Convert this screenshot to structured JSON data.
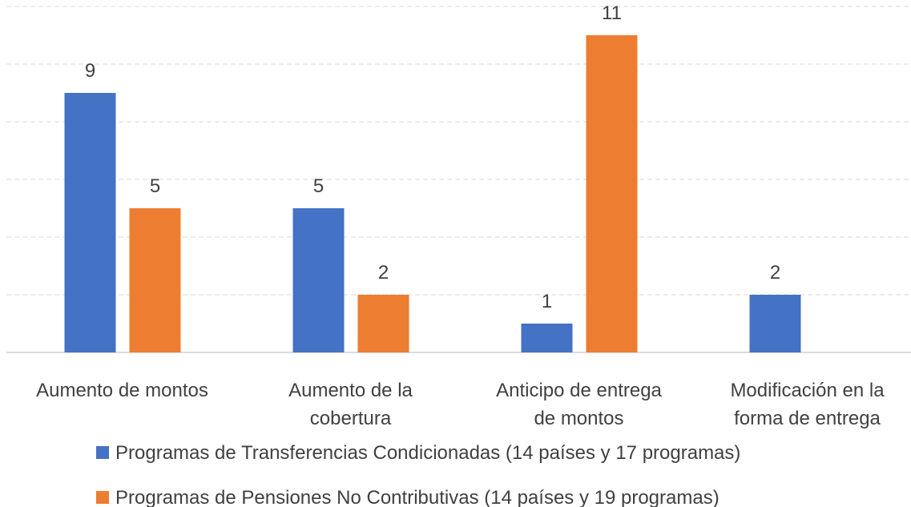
{
  "chart_data": {
    "type": "bar",
    "categories": [
      "Aumento de montos",
      "Aumento de la\ncobertura",
      "Anticipo de entrega\nde montos",
      "Modificación en la\nforma de entrega"
    ],
    "series": [
      {
        "name": "Programas de Transferencias Condicionadas (14 países y 17 programas)",
        "color": "#4472c4",
        "values": [
          9,
          5,
          1,
          2
        ]
      },
      {
        "name": "Programas de Pensiones No Contributivas (14 países y 19 programas)",
        "color": "#ed7d31",
        "values": [
          5,
          2,
          11,
          null
        ]
      }
    ],
    "ylim": [
      0,
      12
    ],
    "yticks": [
      0,
      2,
      4,
      6,
      8,
      10,
      12
    ],
    "grid": true,
    "legend": "bottom"
  }
}
